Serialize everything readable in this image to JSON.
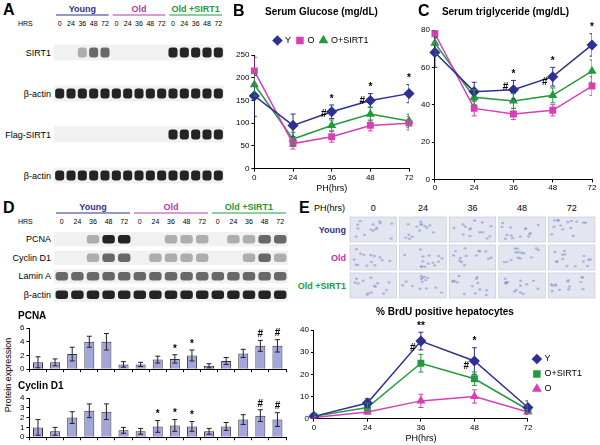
{
  "chart_data": [
    {
      "type": "line",
      "panel": "B",
      "title": "Serum Glucose (mg/dL)",
      "x_label": "PH(hrs)",
      "categories": [
        "0",
        "24",
        "36",
        "48",
        "72"
      ],
      "series": [
        {
          "name": "Y",
          "color": "#2e3192",
          "marker": "diamond",
          "values": [
            160,
            95,
            125,
            150,
            165
          ],
          "errors": [
            45,
            25,
            15,
            15,
            20
          ]
        },
        {
          "name": "O",
          "color": "#d93fb4",
          "marker": "square",
          "values": [
            215,
            55,
            70,
            95,
            100
          ],
          "errors": [
            30,
            12,
            12,
            12,
            15
          ]
        },
        {
          "name": "O+SIRT1",
          "color": "#239a3b",
          "marker": "triangle",
          "values": [
            185,
            65,
            95,
            120,
            105
          ],
          "errors": [
            25,
            15,
            12,
            15,
            15
          ]
        }
      ],
      "ylim": [
        0,
        250
      ],
      "yticks": [
        0,
        50,
        100,
        150,
        200,
        250
      ],
      "grid": false,
      "legend": "top",
      "annotations": [
        {
          "text": "*",
          "index": 2,
          "series": "Y"
        },
        {
          "text": "*",
          "index": 3,
          "series": "Y"
        },
        {
          "text": "*",
          "index": 4,
          "series": "Y"
        },
        {
          "text": "#",
          "index": 2,
          "series": "O+SIRT1"
        },
        {
          "text": "#",
          "index": 3,
          "series": "O+SIRT1"
        }
      ]
    },
    {
      "type": "line",
      "panel": "C",
      "title": "Serum triglyceride (mg/dL)",
      "categories": [
        "0",
        "24",
        "36",
        "48",
        "72"
      ],
      "series": [
        {
          "name": "Y",
          "color": "#2e3192",
          "marker": "diamond",
          "values": [
            68,
            47,
            48,
            55,
            72
          ],
          "errors": [
            8,
            5,
            5,
            5,
            6
          ]
        },
        {
          "name": "O",
          "color": "#d93fb4",
          "marker": "square",
          "values": [
            78,
            38,
            35,
            37,
            50
          ],
          "errors": [
            5,
            4,
            3,
            3,
            5
          ]
        },
        {
          "name": "O+SIRT1",
          "color": "#239a3b",
          "marker": "triangle",
          "values": [
            73,
            44,
            42,
            45,
            58
          ],
          "errors": [
            6,
            4,
            4,
            4,
            6
          ]
        }
      ],
      "ylim": [
        0,
        80
      ],
      "yticks": [
        0,
        20,
        40,
        60,
        80
      ],
      "grid": false,
      "annotations": [
        {
          "text": "*",
          "index": 2,
          "series": "Y"
        },
        {
          "text": "*",
          "index": 3,
          "series": "Y"
        },
        {
          "text": "*",
          "index": 4,
          "series": "Y"
        },
        {
          "text": "#",
          "index": 2,
          "series": "O+SIRT1"
        },
        {
          "text": "#",
          "index": 3,
          "series": "O+SIRT1"
        }
      ]
    },
    {
      "type": "bar",
      "title": "PCNA",
      "y_label": "Protein expression",
      "categories": [
        null,
        null,
        null,
        null,
        null,
        null,
        null,
        null,
        null,
        null,
        null,
        null,
        null,
        null,
        null
      ],
      "values": [
        1,
        1,
        2.2,
        4,
        4,
        0.7,
        0.7,
        1.4,
        1.5,
        2,
        0.5,
        1.2,
        2.3,
        3.4,
        3.4
      ],
      "errors": [
        0.8,
        0.5,
        1,
        0.8,
        1.2,
        0.4,
        0.3,
        0.5,
        0.6,
        0.8,
        0.3,
        0.5,
        0.6,
        0.8,
        0.9
      ],
      "color": "#a3a6dc",
      "ylim": [
        0,
        6
      ],
      "yticks": [
        0,
        2,
        4,
        6
      ],
      "grid": false,
      "tick_labels": "y",
      "annotations": [
        {
          "text": "*",
          "index": 8
        },
        {
          "text": "*",
          "index": 9
        },
        {
          "text": "#",
          "index": 13
        },
        {
          "text": "#",
          "index": 14
        }
      ]
    },
    {
      "type": "bar",
      "title": "Cyclin D1",
      "categories": [
        null,
        null,
        null,
        null,
        null,
        null,
        null,
        null,
        null,
        null,
        null,
        null,
        null,
        null,
        null
      ],
      "values": [
        1,
        0.6,
        2,
        2.7,
        2.6,
        0.7,
        0.6,
        1.1,
        1.2,
        1.1,
        0.6,
        1.1,
        1.8,
        2.2,
        1.8
      ],
      "errors": [
        0.8,
        0.4,
        0.6,
        0.7,
        0.8,
        0.3,
        0.3,
        0.6,
        0.6,
        0.5,
        0.3,
        0.4,
        0.5,
        0.6,
        0.7
      ],
      "color": "#a3a6dc",
      "ylim": [
        0,
        4
      ],
      "yticks": [
        0,
        1,
        2,
        3,
        4
      ],
      "grid": false,
      "tick_labels": "y",
      "annotations": [
        {
          "text": "*",
          "index": 7
        },
        {
          "text": "*",
          "index": 8
        },
        {
          "text": "*",
          "index": 9
        },
        {
          "text": "#",
          "index": 13
        },
        {
          "text": "#",
          "index": 14
        }
      ]
    },
    {
      "type": "line",
      "title": "% BrdU positive hepatocytes",
      "x_label": "PH(hrs)",
      "categories": [
        "0",
        "24",
        "36",
        "48",
        "72"
      ],
      "series": [
        {
          "name": "Y",
          "color": "#2e3192",
          "marker": "diamond",
          "values": [
            1,
            7,
            35,
            26,
            5
          ],
          "errors": [
            1,
            2,
            4,
            6,
            3
          ]
        },
        {
          "name": "O+SIRT1",
          "color": "#239a3b",
          "marker": "square",
          "values": [
            1,
            5,
            25,
            18,
            4
          ],
          "errors": [
            1,
            2,
            4,
            3,
            2
          ]
        },
        {
          "name": "O",
          "color": "#d93fb4",
          "marker": "triangle",
          "values": [
            0.5,
            3,
            8,
            10,
            3
          ],
          "errors": [
            0.5,
            1,
            3,
            3,
            1
          ]
        }
      ],
      "ylim": [
        0,
        40
      ],
      "yticks": [
        0,
        10,
        20,
        30,
        40
      ],
      "grid": false,
      "legend": "right",
      "annotations": [
        {
          "text": "**",
          "index": 2,
          "series": "Y"
        },
        {
          "text": "*",
          "index": 3,
          "series": "Y"
        },
        {
          "text": "#",
          "index": 2,
          "series": "O+SIRT1"
        },
        {
          "text": "#",
          "index": 3,
          "series": "O+SIRT1"
        }
      ]
    }
  ],
  "blots": [
    {
      "panel": "A",
      "hrs_label": "HRS",
      "groups": [
        {
          "name": "Young",
          "color": "#2e3192",
          "lanes": [
            "0",
            "24",
            "36",
            "48",
            "72"
          ]
        },
        {
          "name": "Old",
          "color": "#b03aa8",
          "lanes": [
            "0",
            "24",
            "36",
            "48",
            "72"
          ]
        },
        {
          "name": "Old +SIRT1",
          "color": "#239a3b",
          "lanes": [
            "0",
            "24",
            "36",
            "48",
            "72"
          ]
        }
      ],
      "rows": [
        {
          "name": "SIRT1",
          "bands": [
            0,
            0,
            1,
            2,
            2,
            0,
            0,
            0,
            0,
            0,
            3,
            3,
            3,
            3,
            3
          ]
        },
        {
          "name": "β-actin",
          "bands": [
            3,
            3,
            3,
            3,
            3,
            3,
            3,
            3,
            3,
            3,
            3,
            3,
            3,
            3,
            3
          ]
        },
        {
          "name": "Flag-SIRT1",
          "bands": [
            0,
            0,
            0,
            0,
            0,
            0,
            0,
            0,
            0,
            0,
            3,
            3,
            3,
            3,
            3
          ]
        },
        {
          "name": "β-actin",
          "bands": [
            3,
            3,
            3,
            3,
            3,
            3,
            3,
            3,
            3,
            3,
            3,
            3,
            3,
            3,
            3
          ]
        }
      ]
    },
    {
      "panel": "D",
      "hrs_label": "HRS",
      "groups": [
        {
          "name": "Young",
          "color": "#2e3192",
          "lanes": [
            "0",
            "24",
            "36",
            "48",
            "72"
          ]
        },
        {
          "name": "Old",
          "color": "#b03aa8",
          "lanes": [
            "0",
            "24",
            "36",
            "48",
            "72"
          ]
        },
        {
          "name": "Old +SIRT1",
          "color": "#239a3b",
          "lanes": [
            "0",
            "24",
            "36",
            "48",
            "72"
          ]
        }
      ],
      "rows": [
        {
          "name": "PCNA",
          "bands": [
            0,
            0,
            1,
            3,
            3,
            0,
            0,
            1,
            1,
            1,
            0,
            1,
            1,
            2,
            2
          ]
        },
        {
          "name": "Cyclin D1",
          "bands": [
            0,
            0,
            1,
            2,
            2,
            0,
            1,
            1,
            1,
            1,
            0,
            0,
            1,
            2,
            1
          ]
        },
        {
          "name": "Lamin A",
          "bands": [
            2,
            2,
            2,
            2,
            2,
            2,
            2,
            2,
            2,
            2,
            2,
            2,
            2,
            2,
            2
          ]
        },
        {
          "name": "β-actin",
          "bands": [
            3,
            3,
            3,
            3,
            3,
            3,
            3,
            3,
            3,
            3,
            3,
            3,
            3,
            3,
            3
          ]
        }
      ]
    }
  ],
  "histology": {
    "panel": "E",
    "header": "PH(hrs)",
    "columns": [
      "0",
      "24",
      "36",
      "48",
      "72"
    ],
    "rows": [
      {
        "name": "Young",
        "color": "#2e3192"
      },
      {
        "name": "Old",
        "color": "#c02ea8"
      },
      {
        "name": "Old +SIRT1",
        "color": "#239a3b"
      }
    ]
  }
}
